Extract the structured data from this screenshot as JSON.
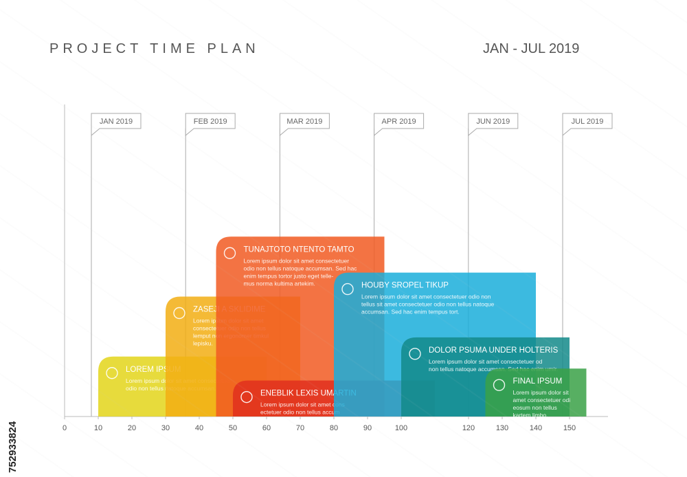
{
  "header": {
    "title": "PROJECT TIME PLAN",
    "period": "JAN - JUL 2019"
  },
  "side_id": "752933824",
  "chart_data": {
    "type": "gantt",
    "xlim": [
      0,
      160
    ],
    "xticks": [
      0,
      10,
      20,
      30,
      40,
      50,
      60,
      70,
      80,
      90,
      100,
      120,
      130,
      140,
      150
    ],
    "milestones": [
      {
        "label": "JAN 2019",
        "x": 10
      },
      {
        "label": "FEB 2019",
        "x": 38
      },
      {
        "label": "MAR 2019",
        "x": 66
      },
      {
        "label": "APR 2019",
        "x": 94
      },
      {
        "label": "JUN 2019",
        "x": 122
      },
      {
        "label": "JUL 2019",
        "x": 150
      }
    ],
    "tasks": [
      {
        "title": "LOREM IPSUM",
        "icon": "lightbulb-icon",
        "color": "#e3d51a",
        "start": 10,
        "end": 60,
        "level": 0.25,
        "text": [
          "Lorem ipsum dolor sit amet consectetuer",
          "odio non tellus natoque accumsan."
        ]
      },
      {
        "title": "ZASEJI A SKLIDIME",
        "icon": "puzzle-icon",
        "color": "#f2ae13",
        "start": 30,
        "end": 70,
        "level": 0.5,
        "text": [
          "Lorem ipsum dolor sit amet",
          "consectetuer odio non tellus",
          "lemput non ergonomer timkul",
          "lepisku."
        ]
      },
      {
        "title": "TUNAJTOTO NTENTO TAMTO",
        "icon": "chat-icon",
        "color": "#f15a22",
        "start": 45,
        "end": 95,
        "level": 0.75,
        "text": [
          "Lorem ipsum dolor sit amet consectetuer",
          "odio non tellus natoque accumsan. Sed hac",
          "enim tempus tortor justo eget telle-",
          "mus norma kultima artekim."
        ]
      },
      {
        "title": "ENEBLIK LEXIS UMARTIN",
        "icon": "person-icon",
        "color": "#e0301e",
        "start": 50,
        "end": 110,
        "level": 0.15,
        "text": [
          "Lorem ipsum dolor sit amet cons",
          "ectetuer odio non tellus accum"
        ]
      },
      {
        "title": "HOUBY SROPEL TIKUP",
        "icon": "globe-icon",
        "color": "#1aaedb",
        "start": 80,
        "end": 140,
        "level": 0.6,
        "text": [
          "Lorem ipsum dolor sit amet consectetuer odio non",
          "tellus sit amet consectetuer odio non tellus natoque",
          "accumsan. Sed hac enim tempus tort."
        ]
      },
      {
        "title": "DOLOR PSUMA UNDER HOLTERIS",
        "icon": "gears-icon",
        "color": "#138a8a",
        "start": 100,
        "end": 150,
        "level": 0.33,
        "text": [
          "Lorem ipsum dolor sit amet consectetuer od",
          "non tellus natoque accumsan. Sed hac enim umir."
        ]
      },
      {
        "title": "FINAL IPSUM",
        "icon": "home-icon",
        "color": "#3aa146",
        "start": 125,
        "end": 155,
        "level": 0.2,
        "text": [
          "Lorem ipsum dolor sit",
          "amet consectetuer odi",
          "eosum non tellus",
          "kartem limbo."
        ]
      }
    ]
  }
}
